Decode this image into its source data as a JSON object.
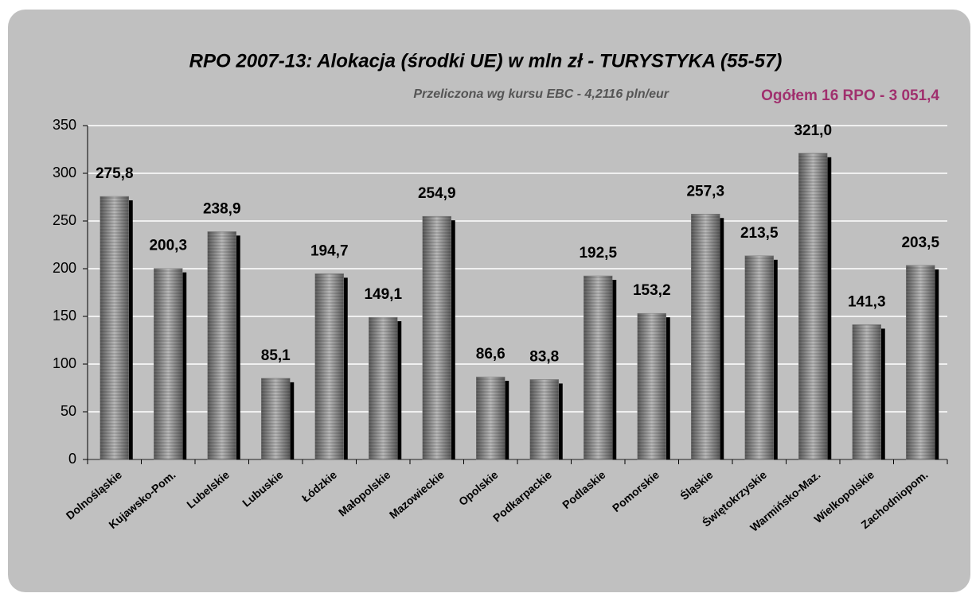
{
  "chart_data": {
    "type": "bar",
    "title": "RPO 2007-13: Alokacja (środki UE) w mln zł - TURYSTYKA (55-57)",
    "subtitle": "Przeliczona wg kursu EBC - 4,2116 pln/eur",
    "annotation": "Ogółem 16 RPO - 3 051,4",
    "categories": [
      "Dolnośląskie",
      "Kujawsko-Pom.",
      "Lubelskie",
      "Lubuskie",
      "Łódzkie",
      "Małopolskie",
      "Mazowieckie",
      "Opolskie",
      "Podkarpackie",
      "Podlaskie",
      "Pomorskie",
      "Śląskie",
      "Świętokrzyskie",
      "Warmińsko-Maz.",
      "Wielkopolskie",
      "Zachodniopom."
    ],
    "values": [
      275.8,
      200.3,
      238.9,
      85.1,
      194.7,
      149.1,
      254.9,
      86.6,
      83.8,
      192.5,
      153.2,
      257.3,
      213.5,
      321.0,
      141.3,
      203.5
    ],
    "value_labels": [
      "275,8",
      "200,3",
      "238,9",
      "85,1",
      "194,7",
      "149,1",
      "254,9",
      "86,6",
      "83,8",
      "192,5",
      "153,2",
      "257,3",
      "213,5",
      "321,0",
      "141,3",
      "203,5"
    ],
    "color": "#808080",
    "ylim": [
      0,
      350
    ],
    "yticks": [
      0,
      50,
      100,
      150,
      200,
      250,
      300,
      350
    ],
    "grid": true
  }
}
